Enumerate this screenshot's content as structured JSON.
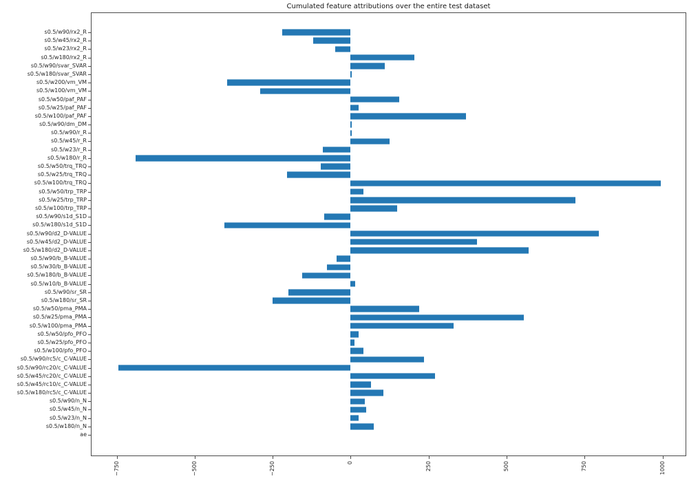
{
  "chart_data": {
    "type": "bar",
    "orientation": "horizontal",
    "title": "Cumulated feature attributions over the entire test dataset",
    "xlabel": "",
    "ylabel": "",
    "grid": false,
    "legend": null,
    "bar_color": "#2478b4",
    "xlim": [
      -833,
      1076
    ],
    "x_ticks": [
      -750,
      -500,
      -250,
      0,
      250,
      500,
      750,
      1000
    ],
    "categories": [
      "s0.5/w90/rx2_R",
      "s0.5/w45/rx2_R",
      "s0.5/w23/rx2_R",
      "s0.5/w180/rx2_R",
      "s0.5/w90/svar_SVAR",
      "s0.5/w180/svar_SVAR",
      "s0.5/w200/vm_VM",
      "s0.5/w100/vm_VM",
      "s0.5/w50/paf_PAF",
      "s0.5/w25/paf_PAF",
      "s0.5/w100/paf_PAF",
      "s0.5/w90/dm_DM",
      "s0.5/w90/r_R",
      "s0.5/w45/r_R",
      "s0.5/w23/r_R",
      "s0.5/w180/r_R",
      "s0.5/w50/trq_TRQ",
      "s0.5/w25/trq_TRQ",
      "s0.5/w100/trq_TRQ",
      "s0.5/w50/trp_TRP",
      "s0.5/w25/trp_TRP",
      "s0.5/w100/trp_TRP",
      "s0.5/w90/s1d_S1D",
      "s0.5/w180/s1d_S1D",
      "s0.5/w90/d2_D-VALUE",
      "s0.5/w45/d2_D-VALUE",
      "s0.5/w180/d2_D-VALUE",
      "s0.5/w90/b_B-VALUE",
      "s0.5/w30/b_B-VALUE",
      "s0.5/w180/b_B-VALUE",
      "s0.5/w10/b_B-VALUE",
      "s0.5/w90/sr_SR",
      "s0.5/w180/sr_SR",
      "s0.5/w50/pma_PMA",
      "s0.5/w25/pma_PMA",
      "s0.5/w100/pma_PMA",
      "s0.5/w50/pfo_PFO",
      "s0.5/w25/pfo_PFO",
      "s0.5/w100/pfo_PFO",
      "s0.5/w90/rc5/c_C-VALUE",
      "s0.5/w90/rc20/c_C-VALUE",
      "s0.5/w45/rc20/c_C-VALUE",
      "s0.5/w45/rc10/c_C-VALUE",
      "s0.5/w180/rc5/c_C-VALUE",
      "s0.5/w90/n_N",
      "s0.5/w45/n_N",
      "s0.5/w23/n_N",
      "s0.5/w180/n_N",
      "ae"
    ],
    "values": [
      -220,
      -120,
      -50,
      205,
      110,
      4,
      -395,
      -290,
      155,
      25,
      370,
      4,
      4,
      125,
      -90,
      -690,
      -95,
      -205,
      995,
      40,
      720,
      150,
      -85,
      -405,
      795,
      405,
      570,
      -45,
      -75,
      -155,
      15,
      -200,
      -250,
      220,
      555,
      330,
      25,
      13,
      40,
      235,
      -745,
      270,
      65,
      105,
      45,
      50,
      25,
      75,
      0
    ]
  }
}
